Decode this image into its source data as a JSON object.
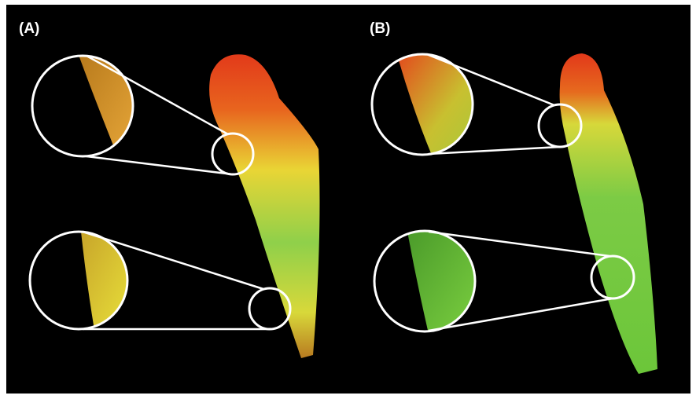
{
  "panels": [
    {
      "label": "(A)"
    },
    {
      "label": "(B)"
    }
  ]
}
